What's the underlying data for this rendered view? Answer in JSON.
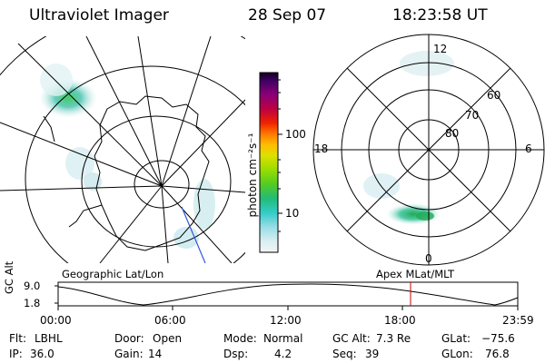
{
  "header": {
    "title": "Ultraviolet Imager",
    "date": "28 Sep 07",
    "time": "18:23:58 UT"
  },
  "colorbar": {
    "unit_label": "photon cm⁻²s⁻¹",
    "ticks": [
      "100",
      "10"
    ]
  },
  "polar_plot": {
    "mlt_labels": [
      "12",
      "18",
      "6",
      "0"
    ],
    "lat_labels": [
      "60",
      "70",
      "80"
    ]
  },
  "orbit": {
    "left_caption": "Geographic Lat/Lon",
    "right_caption": "Apex MLat/MLT",
    "ylabel": "GC Alt",
    "y_ticks": [
      "9.0",
      "1.8"
    ],
    "x_ticks": [
      "00:00",
      "06:00",
      "12:00",
      "18:00",
      "23:59"
    ],
    "current_time_marker": "18:24",
    "marker_color": "#cc0000"
  },
  "status": {
    "row1": [
      {
        "label": "Flt:",
        "value": "LBHL"
      },
      {
        "label": "Door:",
        "value": "Open"
      },
      {
        "label": "Mode:",
        "value": "Normal"
      },
      {
        "label": "GC Alt:",
        "value": "7.3 Re"
      },
      {
        "label": "GLat:",
        "value": "−75.6"
      }
    ],
    "row2": [
      {
        "label": "IP:",
        "value": "36.0"
      },
      {
        "label": "Gain:",
        "value": "14"
      },
      {
        "label": "Dsp:",
        "value": "4.2"
      },
      {
        "label": "Seq:",
        "value": "39"
      },
      {
        "label": "GLon:",
        "value": "76.8"
      }
    ]
  }
}
